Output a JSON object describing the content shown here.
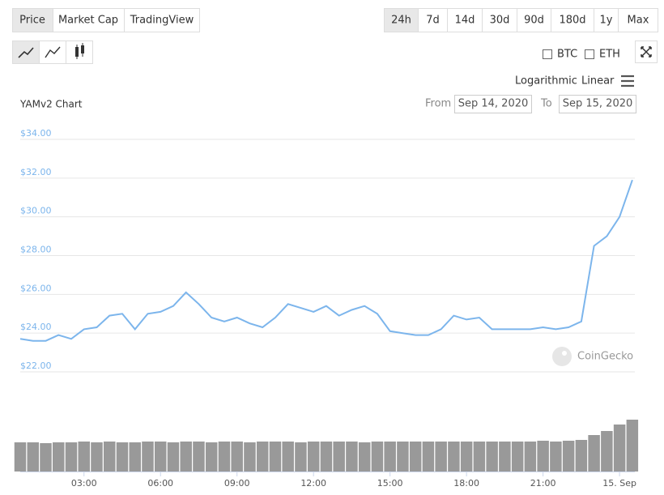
{
  "tabs": [
    "Price",
    "Market Cap",
    "TradingView"
  ],
  "ranges": [
    "24h",
    "7d",
    "14d",
    "30d",
    "90d",
    "180d",
    "1y",
    "Max"
  ],
  "compare": [
    "BTC",
    "ETH"
  ],
  "scales": [
    "Logarithmic",
    "Linear"
  ],
  "date_range": {
    "from_label": "From",
    "from": "Sep 14, 2020",
    "to_label": "To",
    "to": "Sep 15, 2020"
  },
  "watermark": "CoinGecko",
  "chart_data": {
    "type": "line",
    "title": "YAMv2 Chart",
    "x": [
      0.5,
      1,
      1.5,
      2,
      2.5,
      3,
      3.5,
      4,
      4.5,
      5,
      5.5,
      6,
      6.5,
      7,
      7.5,
      8,
      8.5,
      9,
      9.5,
      10,
      10.5,
      11,
      11.5,
      12,
      12.5,
      13,
      13.5,
      14,
      14.5,
      15,
      15.5,
      16,
      16.5,
      17,
      17.5,
      18,
      18.5,
      19,
      19.5,
      20,
      20.5,
      21,
      21.5,
      22,
      22.5,
      23,
      23.5,
      24,
      24.5
    ],
    "series": [
      {
        "color": "#7cb5ec",
        "values": [
          23.7,
          23.6,
          23.6,
          23.9,
          23.7,
          24.2,
          24.3,
          24.9,
          25.0,
          24.2,
          25.0,
          25.1,
          25.4,
          26.1,
          25.5,
          24.8,
          24.6,
          24.8,
          24.5,
          24.3,
          24.8,
          25.5,
          25.3,
          25.1,
          25.4,
          24.9,
          25.2,
          25.4,
          25.0,
          24.1,
          24.0,
          23.9,
          23.9,
          24.2,
          24.9,
          24.7,
          24.8,
          24.2,
          24.2,
          24.2,
          24.2,
          24.3,
          24.2,
          24.3,
          24.6,
          28.5,
          29.0,
          30.0,
          31.9
        ]
      }
    ],
    "volume": {
      "color": "#999999",
      "values": [
        36,
        36,
        35,
        36,
        36,
        37,
        36,
        37,
        36,
        36,
        37,
        37,
        36,
        37,
        37,
        36,
        37,
        37,
        36,
        37,
        37,
        37,
        36,
        37,
        37,
        37,
        37,
        36,
        37,
        37,
        37,
        37,
        37,
        37,
        37,
        37,
        37,
        37,
        37,
        37,
        37,
        38,
        37,
        38,
        39,
        45,
        50,
        58,
        64
      ]
    },
    "xlim": [
      0.5,
      24.6
    ],
    "xticks": [
      {
        "value": 3,
        "label": "03:00"
      },
      {
        "value": 6,
        "label": "06:00"
      },
      {
        "value": 9,
        "label": "09:00"
      },
      {
        "value": 12,
        "label": "12:00"
      },
      {
        "value": 15,
        "label": "15:00"
      },
      {
        "value": 18,
        "label": "18:00"
      },
      {
        "value": 21,
        "label": "21:00"
      },
      {
        "value": 24,
        "label": "15. Sep"
      }
    ],
    "ylim": [
      22,
      34
    ],
    "yticks": [
      {
        "value": 22,
        "label": "$22.00"
      },
      {
        "value": 24,
        "label": "$24.00"
      },
      {
        "value": 26,
        "label": "$26.00"
      },
      {
        "value": 28,
        "label": "$28.00"
      },
      {
        "value": 30,
        "label": "$30.00"
      },
      {
        "value": 32,
        "label": "$32.00"
      },
      {
        "value": 34,
        "label": "$34.00"
      }
    ],
    "grid": true
  }
}
